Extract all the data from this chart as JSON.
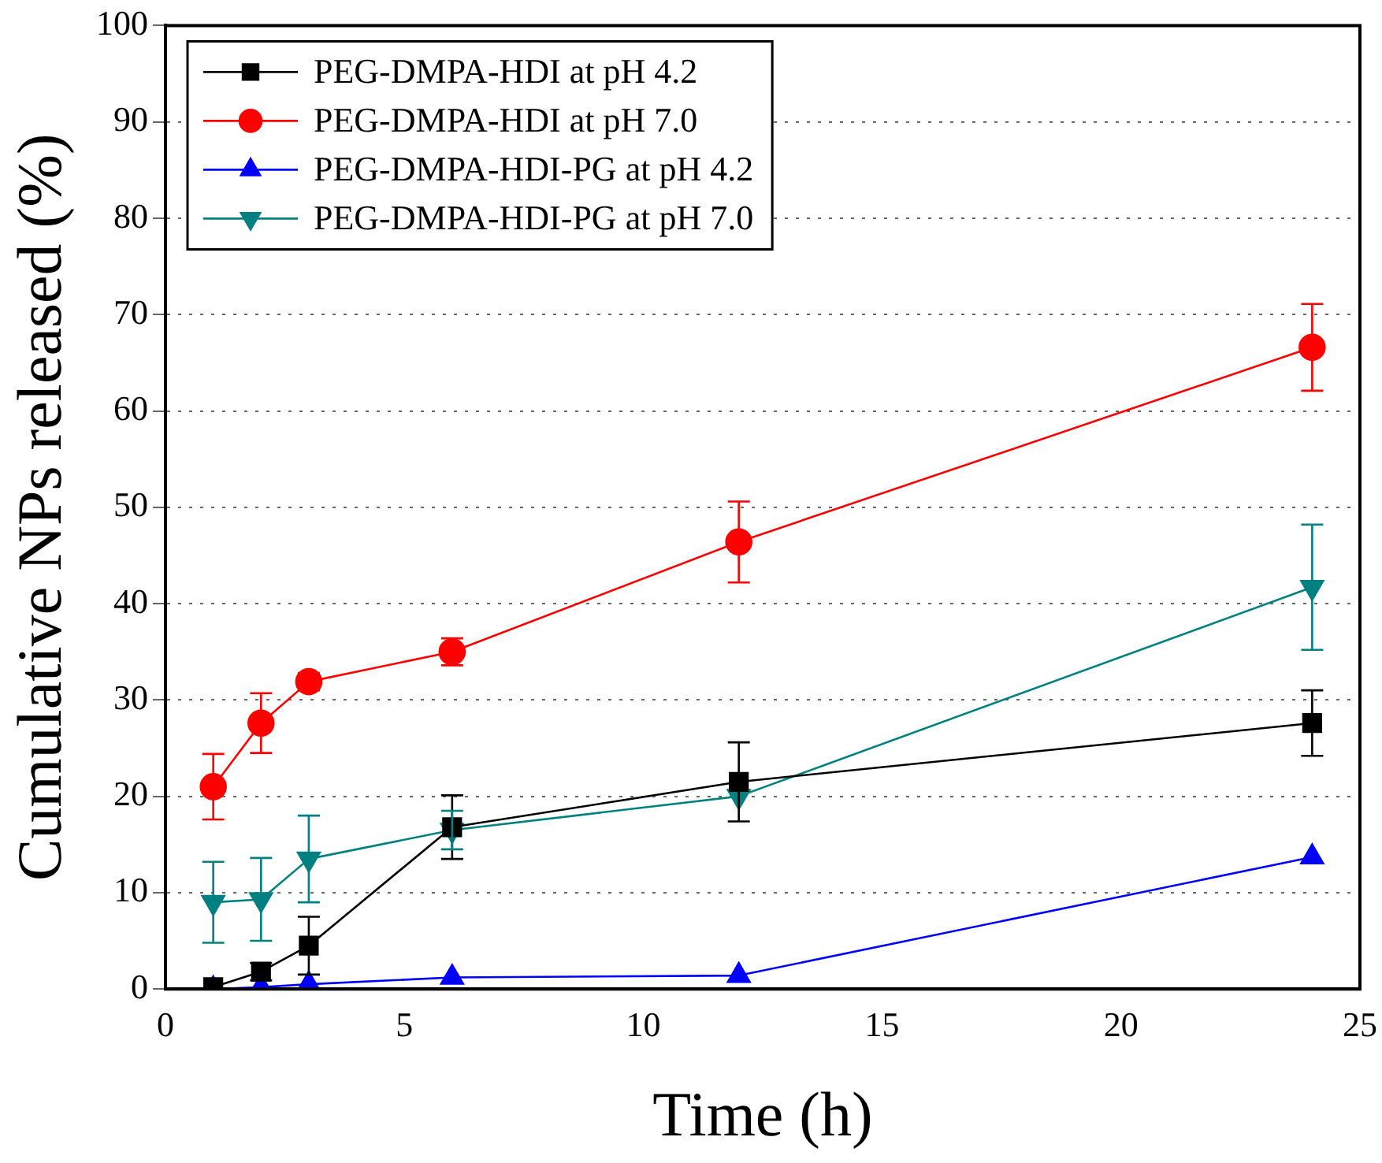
{
  "chart_data": {
    "type": "line",
    "xlabel": "Time (h)",
    "ylabel": "Cumulative NPs released (%)",
    "x": [
      1,
      2,
      3,
      6,
      12,
      24
    ],
    "series": [
      {
        "name": "PEG-DMPA-HDI at pH 4.2",
        "color": "#000000",
        "marker": "square",
        "values": [
          0.2,
          1.8,
          4.5,
          16.8,
          21.5,
          27.6
        ],
        "errors": [
          null,
          0.9,
          3,
          3.3,
          4.1,
          3.4
        ]
      },
      {
        "name": "PEG-DMPA-HDI at pH 7.0",
        "color": "#ff0000",
        "marker": "circle",
        "values": [
          21,
          27.6,
          31.9,
          35,
          46.4,
          66.6
        ],
        "errors": [
          3.4,
          3.1,
          0.9,
          1.4,
          4.2,
          4.5
        ]
      },
      {
        "name": "PEG-DMPA-HDI-PG at pH 4.2",
        "color": "#0000ff",
        "marker": "triangle",
        "values": [
          0,
          0.2,
          0.5,
          1.2,
          1.4,
          13.7
        ]
      },
      {
        "name": "PEG-DMPA-HDI-PG at pH 7.0",
        "color": "#008080",
        "marker": "triangle-down",
        "values": [
          9,
          9.3,
          13.5,
          16.5,
          20,
          41.7
        ],
        "errors": [
          4.2,
          4.3,
          4.5,
          2,
          null,
          6.5
        ]
      }
    ],
    "xlim": [
      0,
      25
    ],
    "xticks": [
      0,
      5,
      10,
      15,
      20,
      25
    ],
    "ylim": [
      0,
      100
    ],
    "yticks": [
      0,
      10,
      20,
      30,
      40,
      50,
      60,
      70,
      80,
      90,
      100
    ],
    "grid": "y",
    "legend": "top left",
    "line_style": "solid"
  }
}
